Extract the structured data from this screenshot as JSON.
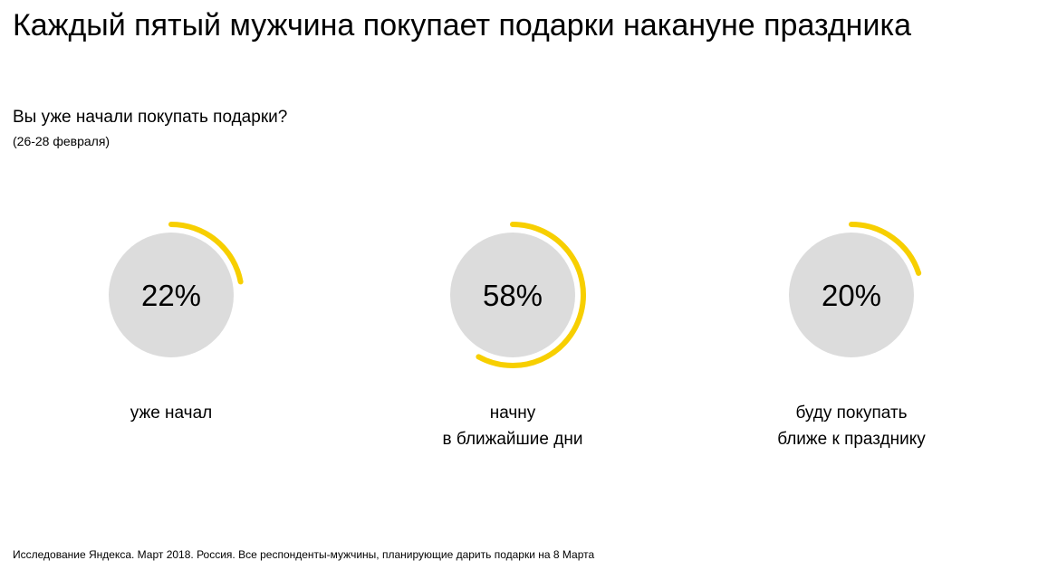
{
  "title": "Каждый пятый мужчина покупает подарки накануне праздника",
  "subtitle": "Вы уже начали покупать подарки?",
  "subnote": "(26-28 февраля)",
  "footnote": "Исследование Яндекса. Март 2018. Россия. Все респонденты-мужчины, планирующие дарить подарки на 8 Марта",
  "colors": {
    "circle": "#dcdcdc",
    "arc": "#f7cf00",
    "text": "#000000"
  },
  "chart_data": {
    "type": "pie",
    "categories": [
      "уже начал",
      "начну\nв ближайшие дни",
      "буду покупать\nближе к празднику"
    ],
    "values": [
      22,
      58,
      20
    ],
    "value_labels": [
      "22%",
      "58%",
      "20%"
    ],
    "unit": "%"
  }
}
